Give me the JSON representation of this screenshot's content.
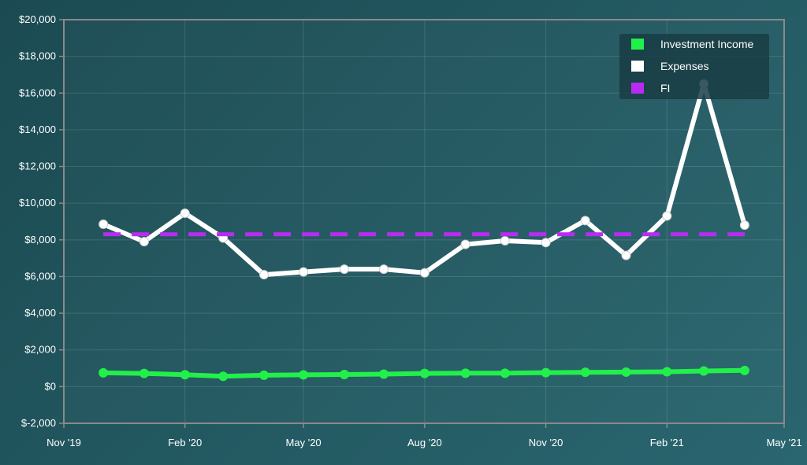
{
  "chart_data": {
    "type": "line",
    "title": "",
    "xlabel": "",
    "ylabel": "",
    "ylim": [
      -2000,
      20000
    ],
    "xlim": [
      "2019-11-01",
      "2021-05-01"
    ],
    "y_ticks": [
      -2000,
      0,
      2000,
      4000,
      6000,
      8000,
      10000,
      12000,
      14000,
      16000,
      18000,
      20000
    ],
    "y_tick_labels": [
      "$-2,000",
      "$0",
      "$2,000",
      "$4,000",
      "$6,000",
      "$8,000",
      "$10,000",
      "$12,000",
      "$14,000",
      "$16,000",
      "$18,000",
      "$20,000"
    ],
    "x_ticks": [
      "2019-11-01",
      "2020-02-01",
      "2020-05-01",
      "2020-08-01",
      "2020-11-01",
      "2021-02-01",
      "2021-05-01"
    ],
    "x_tick_labels": [
      "Nov '19",
      "Feb '20",
      "May '20",
      "Aug '20",
      "Nov '20",
      "Feb '21",
      "May '21"
    ],
    "grid": true,
    "legend_position": "top-right",
    "x": [
      "2019-12-01",
      "2020-01-01",
      "2020-02-01",
      "2020-03-01",
      "2020-04-01",
      "2020-05-01",
      "2020-06-01",
      "2020-07-01",
      "2020-08-01",
      "2020-09-01",
      "2020-10-01",
      "2020-11-01",
      "2020-12-01",
      "2021-01-01",
      "2021-02-01",
      "2021-03-01",
      "2021-04-01"
    ],
    "series": [
      {
        "name": "Investment Income",
        "color": "#22f04a",
        "style": "solid",
        "values": [
          750,
          720,
          650,
          560,
          620,
          640,
          660,
          680,
          720,
          730,
          730,
          760,
          780,
          790,
          810,
          850,
          880
        ]
      },
      {
        "name": "Expenses",
        "color": "#ffffff",
        "style": "solid",
        "values": [
          8850,
          7900,
          9450,
          8100,
          6100,
          6250,
          6400,
          6400,
          6200,
          7750,
          7950,
          7850,
          9050,
          7150,
          9300,
          16500,
          8800
        ]
      },
      {
        "name": "FI",
        "color": "#b82cf2",
        "style": "dashed",
        "values": [
          8300,
          8300,
          8300,
          8300,
          8300,
          8300,
          8300,
          8300,
          8300,
          8300,
          8300,
          8300,
          8300,
          8300,
          8300,
          8300,
          8300
        ]
      }
    ]
  }
}
